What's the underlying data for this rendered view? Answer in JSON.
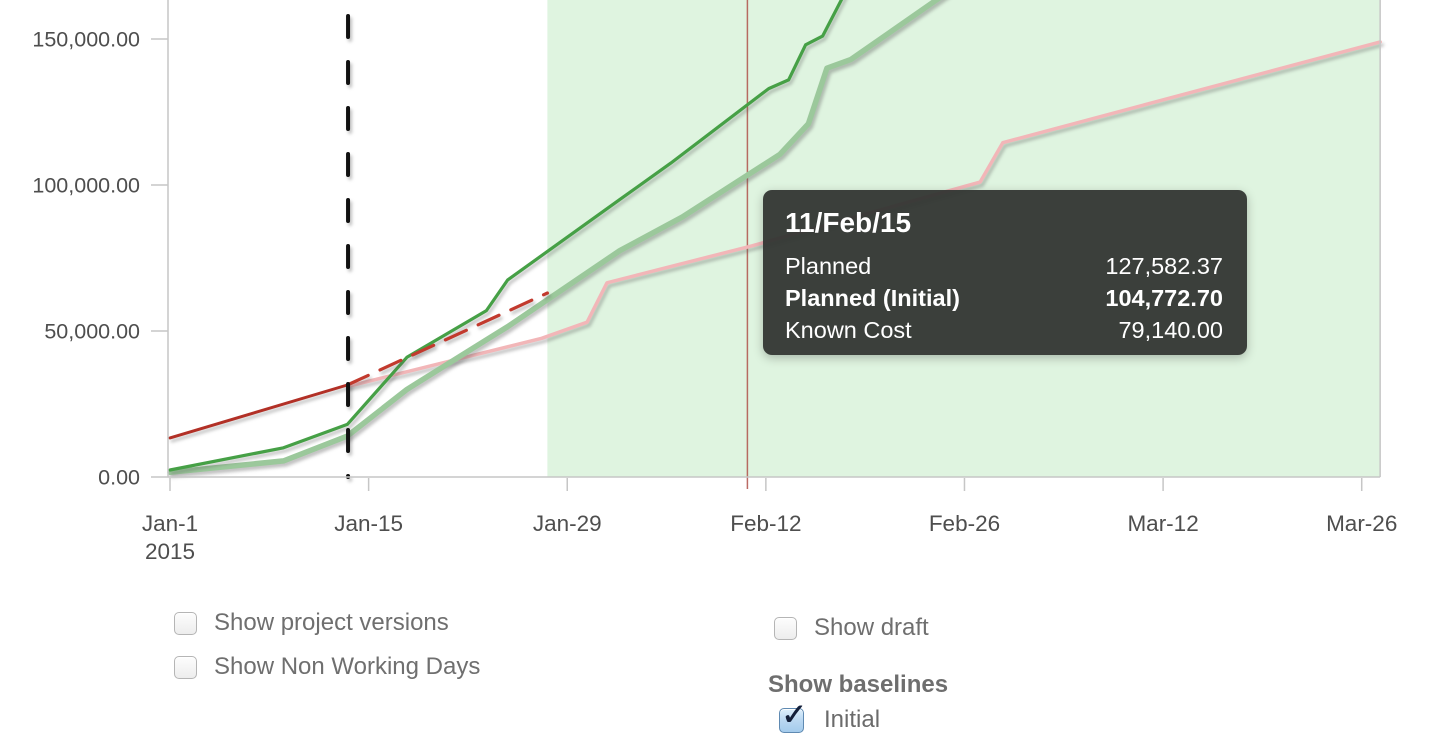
{
  "chart_data": {
    "type": "line",
    "x_axis": {
      "ticks": [
        {
          "label": "Jan-1",
          "sublabel": "2015",
          "day": 0
        },
        {
          "label": "Jan-15",
          "day": 14
        },
        {
          "label": "Jan-29",
          "day": 28
        },
        {
          "label": "Feb-12",
          "day": 42
        },
        {
          "label": "Feb-26",
          "day": 56
        },
        {
          "label": "Mar-12",
          "day": 70
        },
        {
          "label": "Mar-26",
          "day": 84
        }
      ]
    },
    "y_axis": {
      "ticks": [
        {
          "label": "0.00",
          "value": 0
        },
        {
          "label": "50,000.00",
          "value": 50000
        },
        {
          "label": "100,000.00",
          "value": 100000
        },
        {
          "label": "150,000.00",
          "value": 150000
        }
      ],
      "visible_range": [
        0,
        165000
      ]
    },
    "series": [
      {
        "id": "known-cost",
        "name": "Known Cost",
        "color": "#f2b6b8",
        "width": 3.5,
        "style": "solid",
        "points": [
          [
            12.5,
            31000
          ],
          [
            26.2,
            47500
          ],
          [
            29.4,
            53000
          ],
          [
            30.8,
            66500
          ],
          [
            41,
            79140
          ],
          [
            57.1,
            101000
          ],
          [
            58.7,
            114500
          ],
          [
            85.3,
            149000
          ]
        ]
      },
      {
        "id": "planned-initial",
        "name": "Planned (Initial)",
        "color": "#9bc89b",
        "width": 5.5,
        "style": "solid",
        "points": [
          [
            0,
            1600
          ],
          [
            8,
            5500
          ],
          [
            12.5,
            14000
          ],
          [
            16.7,
            30000
          ],
          [
            22.3,
            47000
          ],
          [
            23.8,
            51500
          ],
          [
            31.7,
            77500
          ],
          [
            36.1,
            89000
          ],
          [
            43,
            110500
          ],
          [
            45,
            121000
          ],
          [
            46.3,
            140000
          ],
          [
            48,
            143000
          ],
          [
            54.8,
            166000
          ]
        ]
      },
      {
        "id": "planned",
        "name": "Planned",
        "color": "#46a046",
        "width": 3.2,
        "style": "solid",
        "points": [
          [
            0,
            2400
          ],
          [
            8,
            10000
          ],
          [
            12.5,
            18000
          ],
          [
            16.7,
            41000
          ],
          [
            22.3,
            57000
          ],
          [
            23.8,
            67500
          ],
          [
            31.7,
            95000
          ],
          [
            35.3,
            107500
          ],
          [
            42.2,
            133000
          ],
          [
            43.6,
            136000
          ],
          [
            44.8,
            148000
          ],
          [
            46,
            151000
          ],
          [
            47.6,
            166000
          ]
        ]
      },
      {
        "id": "known-cost-actual",
        "name": "",
        "color": "#b23026",
        "width": 3,
        "style": "solid",
        "points": [
          [
            0,
            13400
          ],
          [
            12.5,
            31500
          ]
        ]
      },
      {
        "id": "known-cost-trend",
        "name": "",
        "color": "#c23a2e",
        "width": 3.2,
        "style": "dashed",
        "points": [
          [
            12.5,
            31500
          ],
          [
            26.6,
            63000
          ]
        ]
      }
    ],
    "markers": {
      "today_line": {
        "day": 12.55,
        "color": "#111111",
        "style": "dashed"
      },
      "hover_line": {
        "day": 40.7,
        "color": "#b0524b"
      }
    },
    "future_region": {
      "start_day": 26.6,
      "end_day": 85.3,
      "color": "#dff4e0"
    },
    "grid": "off",
    "legend": "none"
  },
  "tooltip": {
    "date": "11/Feb/15",
    "rows": [
      {
        "label": "Planned",
        "value": "127,582.37",
        "bold": false
      },
      {
        "label": "Planned (Initial)",
        "value": "104,772.70",
        "bold": true
      },
      {
        "label": "Known Cost",
        "value": "79,140.00",
        "bold": false
      }
    ]
  },
  "controls": {
    "show_project_versions": {
      "label": "Show project versions",
      "checked": false
    },
    "show_non_working_days": {
      "label": "Show Non Working Days",
      "checked": false
    },
    "show_draft": {
      "label": "Show draft",
      "checked": false
    },
    "baselines_heading": "Show baselines",
    "baseline_initial": {
      "label": "Initial",
      "checked": true
    }
  }
}
